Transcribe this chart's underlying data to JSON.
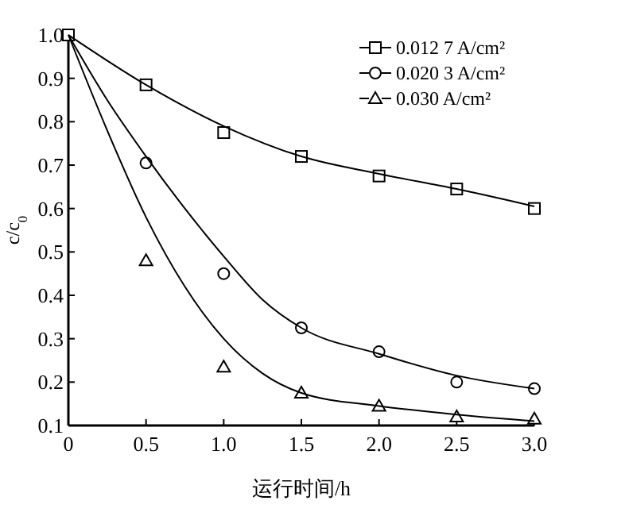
{
  "chart_data": {
    "type": "scatter",
    "xlabel": "运行时间/h",
    "ylabel": "c/c$_{0}$",
    "xlim": [
      0,
      3.0
    ],
    "ylim": [
      0.1,
      1.0
    ],
    "xticks": [
      0,
      0.5,
      {
        "value": 1,
        "label": "1.0"
      },
      1.5,
      {
        "value": 2,
        "label": "2.0"
      },
      2.5,
      {
        "value": 3,
        "label": "3.0"
      }
    ],
    "yticks": [
      0.1,
      0.2,
      0.3,
      0.4,
      0.5,
      0.6,
      0.7,
      0.8,
      0.9,
      {
        "value": 1,
        "label": "1.0"
      }
    ],
    "grid": false,
    "legend": "top right",
    "line_style": "solid",
    "series": [
      {
        "name": "0.012 7 A/cm²",
        "marker": "square",
        "color": "#000000",
        "x": [
          0,
          0.5,
          1,
          1.5,
          2,
          2.5,
          3
        ],
        "values": [
          1.0,
          0.885,
          0.775,
          0.72,
          0.675,
          0.645,
          0.6
        ]
      },
      {
        "name": "0.020 3 A/cm²",
        "marker": "circle",
        "color": "#000000",
        "x": [
          0.5,
          1,
          1.5,
          2,
          2.5,
          3
        ],
        "values": [
          0.705,
          0.45,
          0.325,
          0.27,
          0.2,
          0.185
        ]
      },
      {
        "name": "0.030 A/cm²",
        "marker": "triangle",
        "color": "#000000",
        "x": [
          0.5,
          1,
          1.5,
          2,
          2.5,
          3
        ],
        "values": [
          0.48,
          0.235,
          0.175,
          0.145,
          0.12,
          0.115
        ]
      },
      {
        "type": "line",
        "color": "#000000",
        "x": [
          0,
          0.5,
          1,
          1.5,
          2,
          2.5,
          3
        ],
        "values": [
          1.0,
          0.885,
          0.79,
          0.72,
          0.68,
          0.645,
          0.605
        ]
      },
      {
        "type": "line",
        "color": "#000000",
        "x": [
          0,
          0.25,
          0.5,
          0.75,
          1,
          1.25,
          1.5,
          2,
          2.5,
          3
        ],
        "values": [
          1.0,
          0.85,
          0.72,
          0.6,
          0.49,
          0.39,
          0.325,
          0.265,
          0.215,
          0.185
        ]
      },
      {
        "type": "line",
        "color": "#000000",
        "x": [
          0,
          0.25,
          0.5,
          0.75,
          1,
          1.25,
          1.5,
          2,
          2.5,
          3
        ],
        "values": [
          1.0,
          0.78,
          0.58,
          0.42,
          0.3,
          0.22,
          0.175,
          0.145,
          0.125,
          0.11
        ]
      }
    ]
  }
}
